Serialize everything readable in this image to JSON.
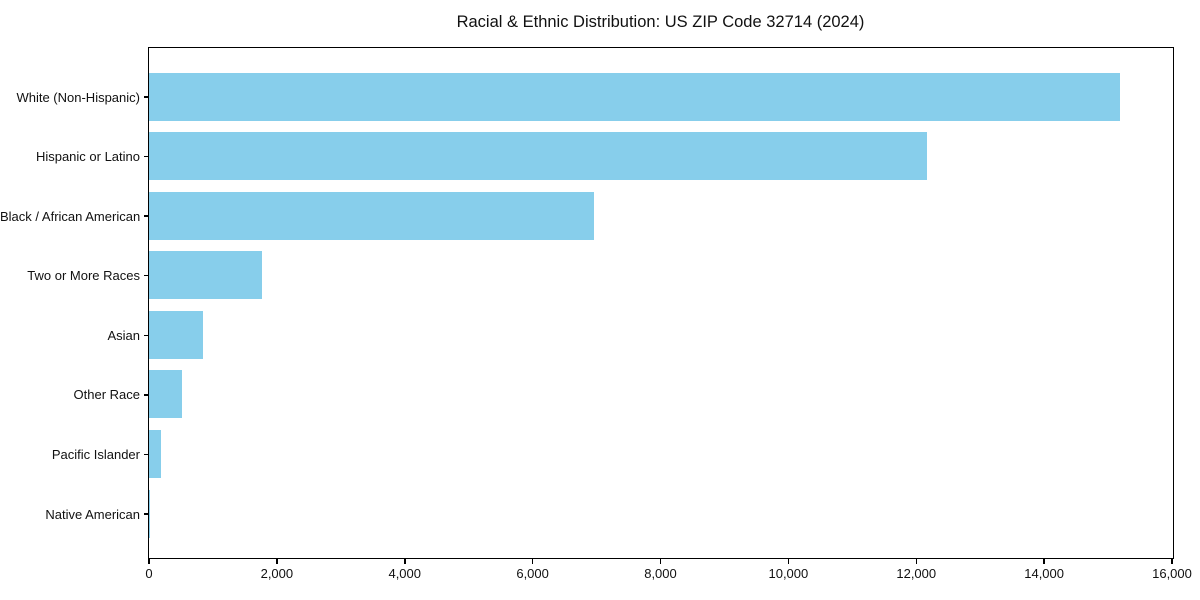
{
  "chart_data": {
    "type": "bar",
    "orientation": "horizontal",
    "title": "Racial & Ethnic Distribution: US ZIP Code 32714 (2024)",
    "categories": [
      "White (Non-Hispanic)",
      "Hispanic or Latino",
      "Black / African American",
      "Two or More Races",
      "Asian",
      "Other Race",
      "Pacific Islander",
      "Native American"
    ],
    "values": [
      15200,
      12170,
      6970,
      1780,
      860,
      520,
      200,
      20
    ],
    "xlabel": "",
    "ylabel": "",
    "xlim": [
      0,
      16000
    ],
    "xticks": [
      0,
      2000,
      4000,
      6000,
      8000,
      10000,
      12000,
      14000,
      16000
    ],
    "xtick_labels": [
      "0",
      "2,000",
      "4,000",
      "6,000",
      "8,000",
      "10,000",
      "12,000",
      "14,000",
      "16,000"
    ],
    "bar_color": "#87CEEB",
    "background": "#FFFFFF",
    "grid": false,
    "legend": null
  }
}
